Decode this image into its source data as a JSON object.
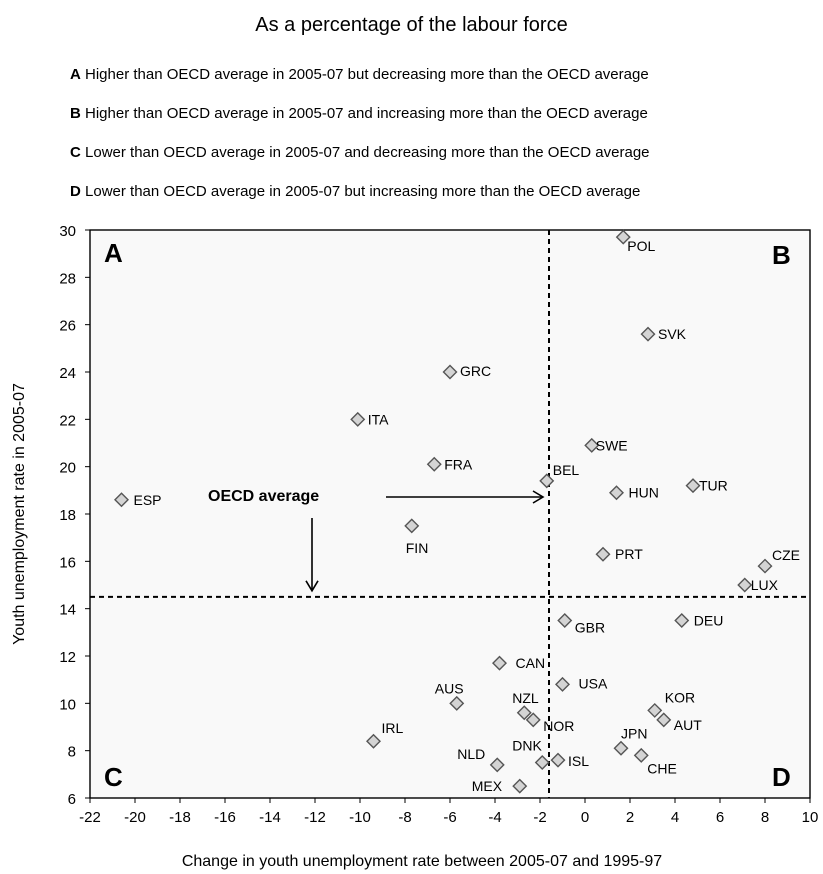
{
  "chart_data": {
    "type": "scatter",
    "title": "As a percentage of the labour force",
    "xlabel": "Change in youth unemployment rate between 2005-07 and 1995-97",
    "ylabel": "Youth unemployment rate  in 2005-07",
    "xlim": [
      -22,
      10
    ],
    "ylim": [
      6,
      30
    ],
    "xticks": [
      -22,
      -20,
      -18,
      -16,
      -14,
      -12,
      -10,
      -8,
      -6,
      -4,
      -2,
      0,
      2,
      4,
      6,
      8,
      10
    ],
    "yticks": [
      6,
      8,
      10,
      12,
      14,
      16,
      18,
      20,
      22,
      24,
      26,
      28,
      30
    ],
    "grid": false,
    "oecd_average": {
      "label": "OECD average",
      "x": -1.6,
      "y": 14.5
    },
    "legend": [
      {
        "key": "A",
        "text": " Higher than OECD average in 2005-07 but decreasing more than the OECD average"
      },
      {
        "key": "B",
        "text": " Higher than OECD average in 2005-07 and increasing more than the OECD average"
      },
      {
        "key": "C",
        "text": " Lower than OECD average in 2005-07 and decreasing more than the OECD average"
      },
      {
        "key": "D",
        "text": " Lower than OECD average in 2005-07 but  increasing more than the OECD average"
      }
    ],
    "quadrants": [
      "A",
      "B",
      "C",
      "D"
    ],
    "points": [
      {
        "label": "POL",
        "x": 1.7,
        "y": 29.7,
        "dx": 4,
        "dy": 14
      },
      {
        "label": "SVK",
        "x": 2.8,
        "y": 25.6,
        "dx": 10,
        "dy": 5
      },
      {
        "label": "GRC",
        "x": -6.0,
        "y": 24.0,
        "dx": 10,
        "dy": 4
      },
      {
        "label": "ITA",
        "x": -10.1,
        "y": 22.0,
        "dx": 10,
        "dy": 5
      },
      {
        "label": "SWE",
        "x": 0.3,
        "y": 20.9,
        "dx": 4,
        "dy": 5
      },
      {
        "label": "FRA",
        "x": -6.7,
        "y": 20.1,
        "dx": 10,
        "dy": 5
      },
      {
        "label": "BEL",
        "x": -1.7,
        "y": 19.4,
        "dx": 6,
        "dy": -6
      },
      {
        "label": "TUR",
        "x": 4.8,
        "y": 19.2,
        "dx": 6,
        "dy": 5
      },
      {
        "label": "HUN",
        "x": 1.4,
        "y": 18.9,
        "dx": 12,
        "dy": 5
      },
      {
        "label": "ESP",
        "x": -20.6,
        "y": 18.6,
        "dx": 12,
        "dy": 5
      },
      {
        "label": "FIN",
        "x": -7.7,
        "y": 17.5,
        "dx": -6,
        "dy": 27
      },
      {
        "label": "PRT",
        "x": 0.8,
        "y": 16.3,
        "dx": 12,
        "dy": 5
      },
      {
        "label": "CZE",
        "x": 8.0,
        "y": 15.8,
        "dx": 7,
        "dy": -6
      },
      {
        "label": "LUX",
        "x": 7.1,
        "y": 15.0,
        "dx": 6,
        "dy": 5
      },
      {
        "label": "GBR",
        "x": -0.9,
        "y": 13.5,
        "dx": 10,
        "dy": 12
      },
      {
        "label": "DEU",
        "x": 4.3,
        "y": 13.5,
        "dx": 12,
        "dy": 5
      },
      {
        "label": "CAN",
        "x": -3.8,
        "y": 11.7,
        "dx": 16,
        "dy": 5
      },
      {
        "label": "USA",
        "x": -1.0,
        "y": 10.8,
        "dx": 16,
        "dy": 4
      },
      {
        "label": "AUS",
        "x": -5.7,
        "y": 10.0,
        "dx": -22,
        "dy": -10
      },
      {
        "label": "KOR",
        "x": 3.1,
        "y": 9.7,
        "dx": 10,
        "dy": -8
      },
      {
        "label": "NZL",
        "x": -2.7,
        "y": 9.6,
        "dx": -12,
        "dy": -10
      },
      {
        "label": "AUT",
        "x": 3.5,
        "y": 9.3,
        "dx": 10,
        "dy": 10
      },
      {
        "label": "NOR",
        "x": -2.3,
        "y": 9.3,
        "dx": 10,
        "dy": 11
      },
      {
        "label": "IRL",
        "x": -9.4,
        "y": 8.4,
        "dx": 8,
        "dy": -8
      },
      {
        "label": "JPN",
        "x": 1.6,
        "y": 8.1,
        "dx": 0,
        "dy": -10
      },
      {
        "label": "CHE",
        "x": 2.5,
        "y": 7.8,
        "dx": 6,
        "dy": 18
      },
      {
        "label": "DNK",
        "x": -1.9,
        "y": 7.5,
        "dx": -30,
        "dy": -12
      },
      {
        "label": "ISL",
        "x": -1.2,
        "y": 7.6,
        "dx": 10,
        "dy": 6
      },
      {
        "label": "NLD",
        "x": -3.9,
        "y": 7.4,
        "dx": -40,
        "dy": -6
      },
      {
        "label": "MEX",
        "x": -2.9,
        "y": 6.5,
        "dx": -48,
        "dy": 5
      }
    ]
  }
}
